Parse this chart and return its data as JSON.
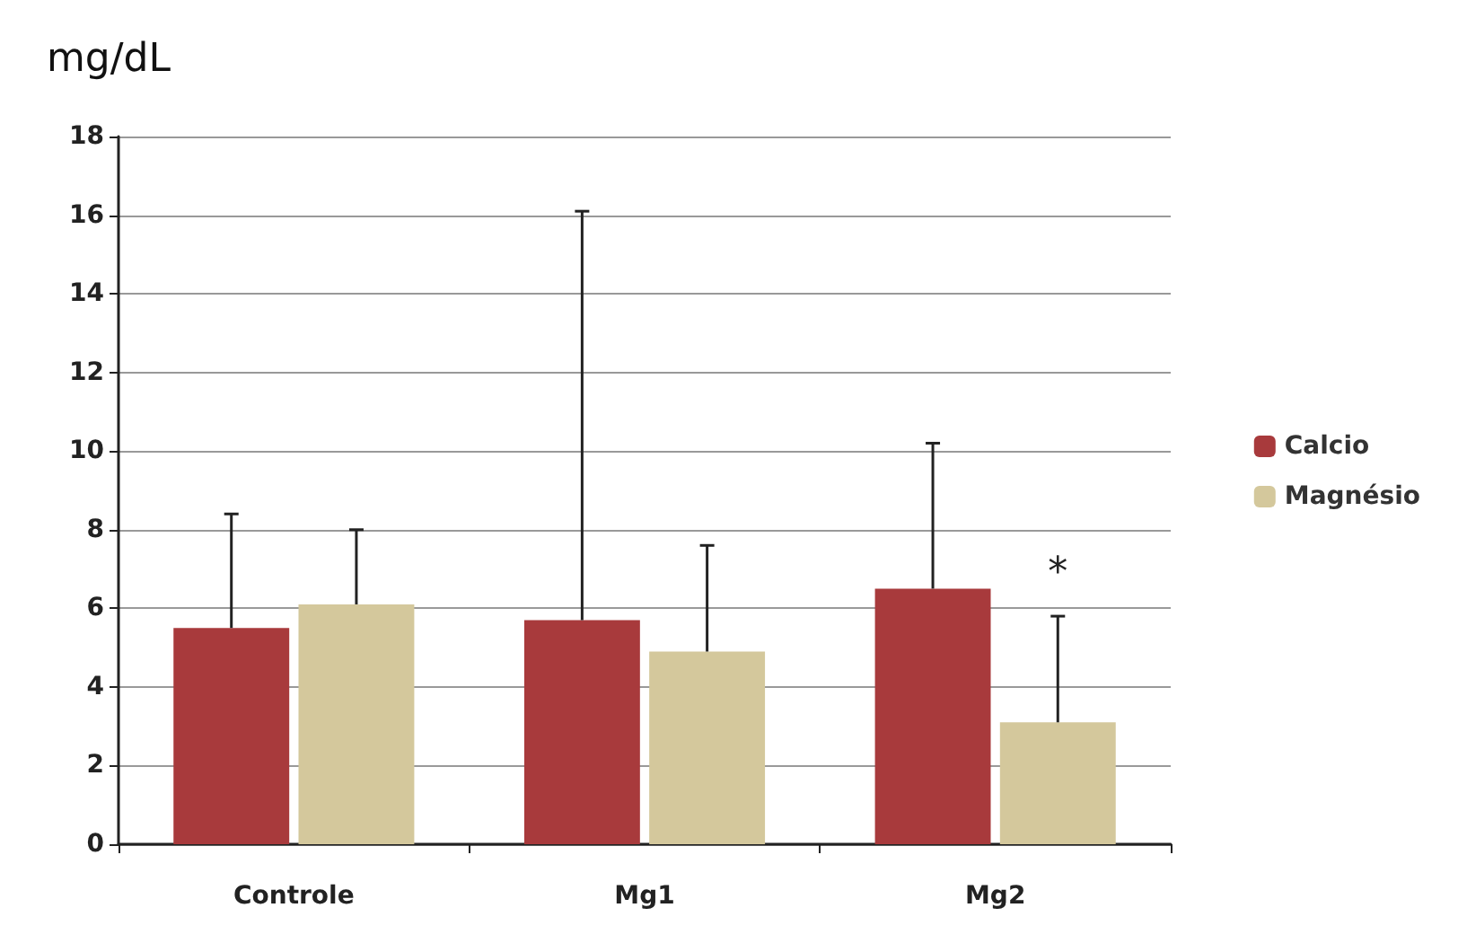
{
  "chart_data": {
    "type": "bar",
    "ylabel": "mg/dL",
    "categories": [
      "Controle",
      "Mg1",
      "Mg2"
    ],
    "series": [
      {
        "name": "Calcio",
        "color": "#a83a3c",
        "values": [
          5.5,
          5.7,
          6.5
        ],
        "errors": [
          [
            5.5,
            8.4
          ],
          [
            5.7,
            16.1
          ],
          [
            6.5,
            10.2
          ]
        ]
      },
      {
        "name": "Magnésio",
        "color": "#d4c89c",
        "values": [
          6.1,
          4.9,
          3.1
        ],
        "errors": [
          [
            6.1,
            8.0
          ],
          [
            4.9,
            7.6
          ],
          [
            3.1,
            5.8
          ]
        ]
      }
    ],
    "ylim": [
      0,
      18
    ],
    "yticks": [
      0,
      2,
      4,
      6,
      8,
      10,
      12,
      14,
      16,
      18
    ],
    "grid": "y",
    "legend": "right",
    "annotations": [
      {
        "text": "*",
        "x": "Mg2",
        "y": 6.3
      }
    ]
  }
}
